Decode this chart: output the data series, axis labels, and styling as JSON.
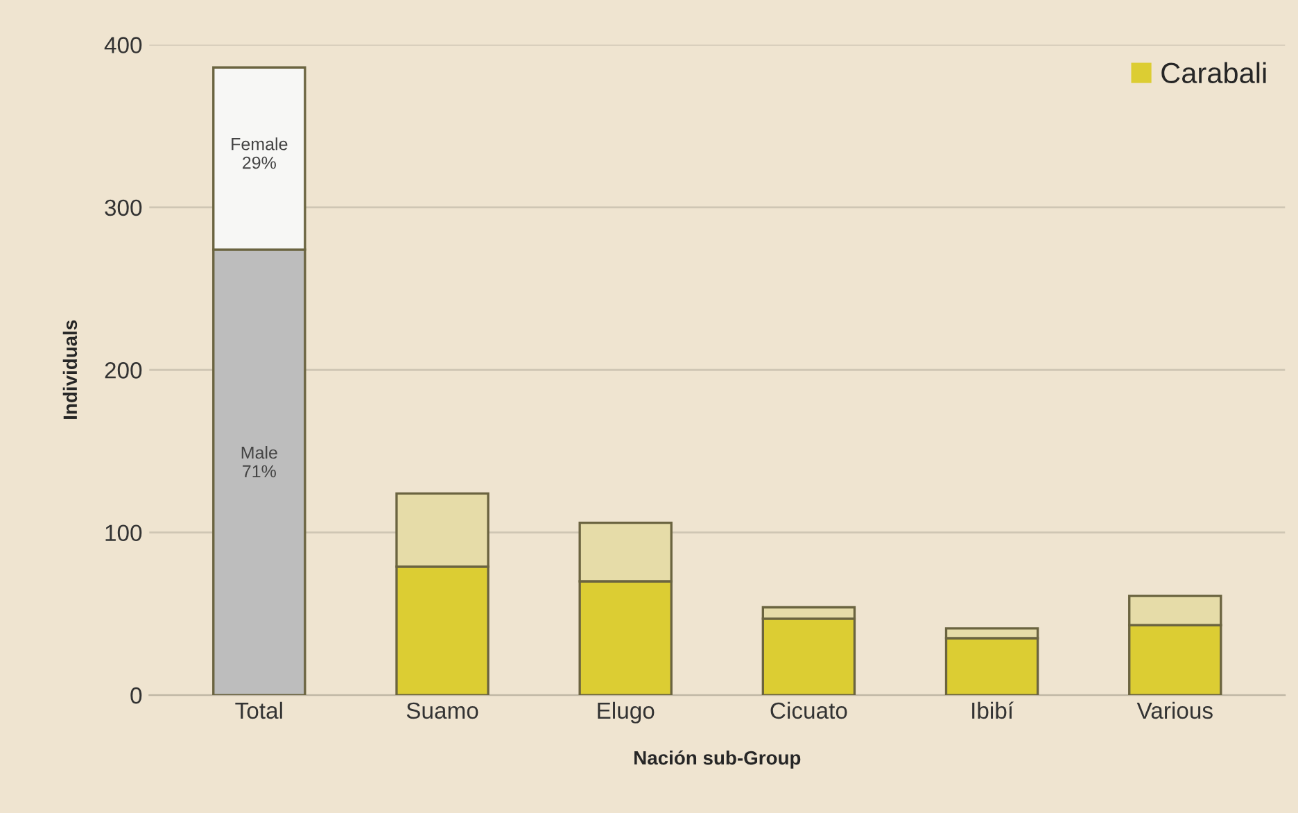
{
  "chart_data": {
    "type": "bar",
    "stacked": true,
    "categories": [
      "Total",
      "Suamo",
      "Elugo",
      "Cicuato",
      "Ibibí",
      "Various"
    ],
    "series": [
      {
        "name": "Carabali",
        "color": "#dccd33",
        "colors": [
          "#bdbdbd",
          "#dccd33",
          "#dccd33",
          "#dccd33",
          "#dccd33",
          "#dccd33"
        ],
        "values": [
          274,
          79,
          70,
          47,
          35,
          43
        ]
      },
      {
        "colors": [
          "#f7f7f5",
          "#e6dca8",
          "#e6dca8",
          "#e6dca8",
          "#e6dca8",
          "#e6dca8"
        ],
        "values": [
          112,
          45,
          36,
          7,
          6,
          18
        ]
      }
    ],
    "xlabel": "Nación sub-Group",
    "ylabel": "Individuals",
    "ylim": [
      0,
      400
    ],
    "yticks": [
      0,
      100,
      200,
      300,
      400
    ],
    "grid": "y",
    "legend": "top right",
    "annotations": [
      "Female\n29%",
      "Male\n71%"
    ]
  }
}
